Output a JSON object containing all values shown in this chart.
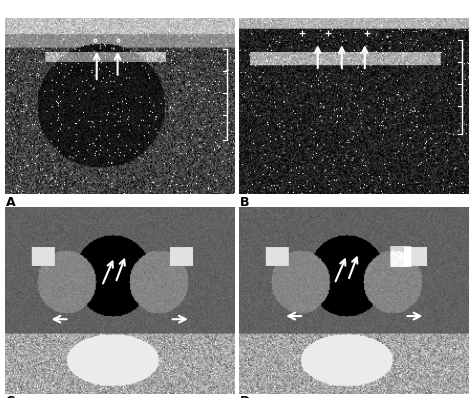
{
  "fig_width": 4.74,
  "fig_height": 3.98,
  "dpi": 100,
  "bg_color": "#ffffff",
  "panel_labels": [
    "A",
    "B",
    "C",
    "D"
  ],
  "panel_label_color": "#000000",
  "panel_label_fontsize": 9,
  "arrow_color": "#ffffff",
  "top_bar_color": "#00b8b8"
}
